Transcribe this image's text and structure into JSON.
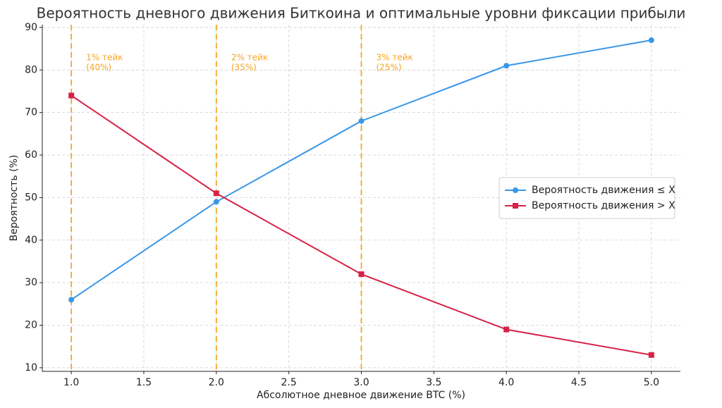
{
  "chart_data": {
    "type": "line",
    "title": "Вероятность дневного движения Биткоина и оптимальные уровни фиксации прибыли",
    "xlabel": "Абсолютное дневное движение BTC (%)",
    "ylabel": "Вероятность (%)",
    "x": [
      1,
      2,
      3,
      4,
      5
    ],
    "series": [
      {
        "name": "Вероятность движения ≤ X",
        "color": "#3a97e8",
        "marker": "circle",
        "values": [
          26,
          49,
          68,
          81,
          87
        ]
      },
      {
        "name": "Вероятность движения > X",
        "color": "#d62246",
        "marker": "square",
        "values": [
          74,
          51,
          32,
          19,
          13
        ]
      }
    ],
    "vlines": [
      {
        "x": 1,
        "label": [
          "1% тейк",
          "(40%)"
        ]
      },
      {
        "x": 2,
        "label": [
          "2% тейк",
          "(35%)"
        ]
      },
      {
        "x": 3,
        "label": [
          "3% тейк",
          "(25%)"
        ]
      }
    ],
    "vline_color": "#f5a623",
    "xlim": [
      0.8,
      5.2
    ],
    "ylim": [
      9.15,
      90.65
    ],
    "xticks": [
      {
        "value": 1,
        "label": "1.0"
      },
      {
        "value": 1.5,
        "label": "1.5"
      },
      {
        "value": 2,
        "label": "2.0"
      },
      {
        "value": 2.5,
        "label": "2.5"
      },
      {
        "value": 3,
        "label": "3.0"
      },
      {
        "value": 3.5,
        "label": "3.5"
      },
      {
        "value": 4,
        "label": "4.0"
      },
      {
        "value": 4.5,
        "label": "4.5"
      },
      {
        "value": 5,
        "label": "5.0"
      }
    ],
    "yticks": [
      10,
      20,
      30,
      40,
      50,
      60,
      70,
      80,
      90
    ],
    "grid": true,
    "legend": "right"
  }
}
